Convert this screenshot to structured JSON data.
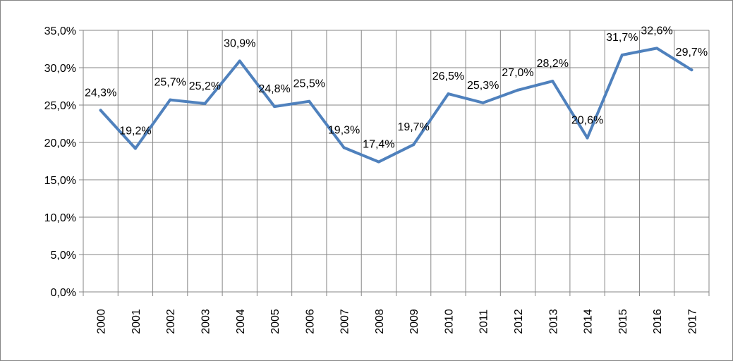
{
  "chart_data": {
    "type": "line",
    "title": "",
    "xlabel": "",
    "ylabel": "",
    "categories": [
      "2000",
      "2001",
      "2002",
      "2003",
      "2004",
      "2005",
      "2006",
      "2007",
      "2008",
      "2009",
      "2010",
      "2011",
      "2012",
      "2013",
      "2014",
      "2015",
      "2016",
      "2017"
    ],
    "series": [
      {
        "values": [
          24.3,
          19.2,
          25.7,
          25.2,
          30.9,
          24.8,
          25.5,
          19.3,
          17.4,
          19.7,
          26.5,
          25.3,
          27.0,
          28.2,
          20.6,
          31.7,
          32.6,
          29.7
        ],
        "labels": [
          "24,3%",
          "19,2%",
          "25,7%",
          "25,2%",
          "30,9%",
          "24,8%",
          "25,5%",
          "19,3%",
          "17,4%",
          "19,7%",
          "26,5%",
          "25,3%",
          "27,0%",
          "28,2%",
          "20,6%",
          "31,7%",
          "32,6%",
          "29,7%"
        ],
        "color": "#4f81bd"
      }
    ],
    "ylim": [
      0,
      35
    ],
    "yticks": [
      0,
      5,
      10,
      15,
      20,
      25,
      30,
      35
    ],
    "ytick_labels": [
      "0,0%",
      "5,0%",
      "10,0%",
      "15,0%",
      "20,0%",
      "25,0%",
      "30,0%",
      "35,0%"
    ],
    "grid": true,
    "legend": "none"
  }
}
